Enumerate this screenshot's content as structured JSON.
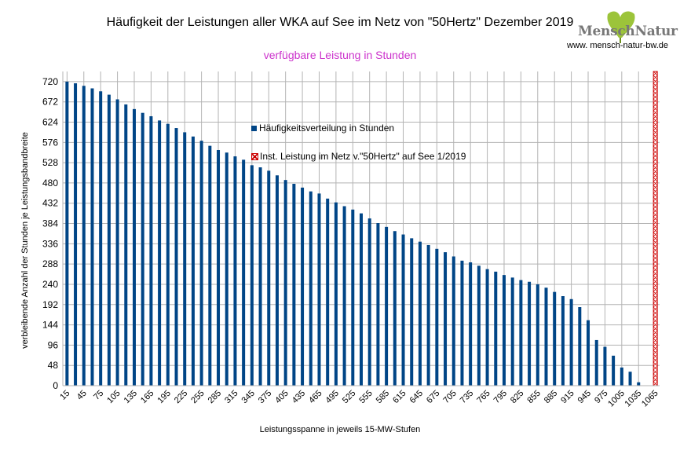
{
  "header": {
    "title": "Häufigkeit der Leistungen aller WKA auf See im Netz von \"50Hertz\" Dezember 2019",
    "subtitle": "verfügbare Leistung in Stunden",
    "logo_text": "MenschNatur",
    "website": "www. mensch-natur-bw.de"
  },
  "colors": {
    "bars": "#004586",
    "installed": "#cc0000",
    "subtitle": "#cc33cc",
    "grid": "#b3b3b3"
  },
  "chart_data": {
    "type": "bar",
    "title": "Häufigkeit der Leistungen aller WKA auf See im Netz von \"50Hertz\" Dezember 2019",
    "subtitle": "verfügbare Leistung in Stunden",
    "xlabel": "Leistungsspanne in jeweils 15-MW-Stufen",
    "ylabel": "verbleibende Anzahl der Stunden je Leistungsbandbreite",
    "ylim": [
      0,
      744
    ],
    "yticks": [
      0,
      48,
      96,
      144,
      192,
      240,
      288,
      336,
      384,
      432,
      480,
      528,
      576,
      624,
      672,
      720
    ],
    "x_tick_labels": [
      "15",
      "45",
      "75",
      "105",
      "135",
      "165",
      "195",
      "225",
      "255",
      "285",
      "315",
      "345",
      "375",
      "405",
      "435",
      "465",
      "495",
      "525",
      "555",
      "585",
      "615",
      "645",
      "675",
      "705",
      "735",
      "765",
      "795",
      "825",
      "855",
      "885",
      "915",
      "945",
      "975",
      "1005",
      "1035",
      "1065"
    ],
    "grid": true,
    "legend_placement": "inside-center",
    "series": [
      {
        "name": "Häufigkeitsverteilung in Stunden",
        "x": [
          15,
          30,
          45,
          60,
          75,
          90,
          105,
          120,
          135,
          150,
          165,
          180,
          195,
          210,
          225,
          240,
          255,
          270,
          285,
          300,
          315,
          330,
          345,
          360,
          375,
          390,
          405,
          420,
          435,
          450,
          465,
          480,
          495,
          510,
          525,
          540,
          555,
          570,
          585,
          600,
          615,
          630,
          645,
          660,
          675,
          690,
          705,
          720,
          735,
          750,
          765,
          780,
          795,
          810,
          825,
          840,
          855,
          870,
          885,
          900,
          915,
          930,
          945,
          960,
          975,
          990,
          1005,
          1020,
          1035,
          1050
        ],
        "values": [
          720,
          716,
          710,
          704,
          697,
          689,
          678,
          666,
          655,
          646,
          638,
          628,
          620,
          610,
          600,
          590,
          580,
          568,
          558,
          552,
          543,
          535,
          522,
          517,
          509,
          498,
          487,
          478,
          469,
          460,
          455,
          443,
          434,
          425,
          417,
          408,
          396,
          385,
          376,
          366,
          358,
          349,
          341,
          333,
          324,
          316,
          306,
          296,
          292,
          284,
          276,
          270,
          262,
          256,
          250,
          246,
          240,
          232,
          222,
          212,
          205,
          186,
          155,
          108,
          92,
          71,
          43,
          33,
          8,
          0
        ]
      },
      {
        "name": "Inst. Leistung im Netz v.\"50Hertz\" auf See 1/2019",
        "x": [
          1065
        ],
        "values": [
          744
        ]
      }
    ]
  }
}
